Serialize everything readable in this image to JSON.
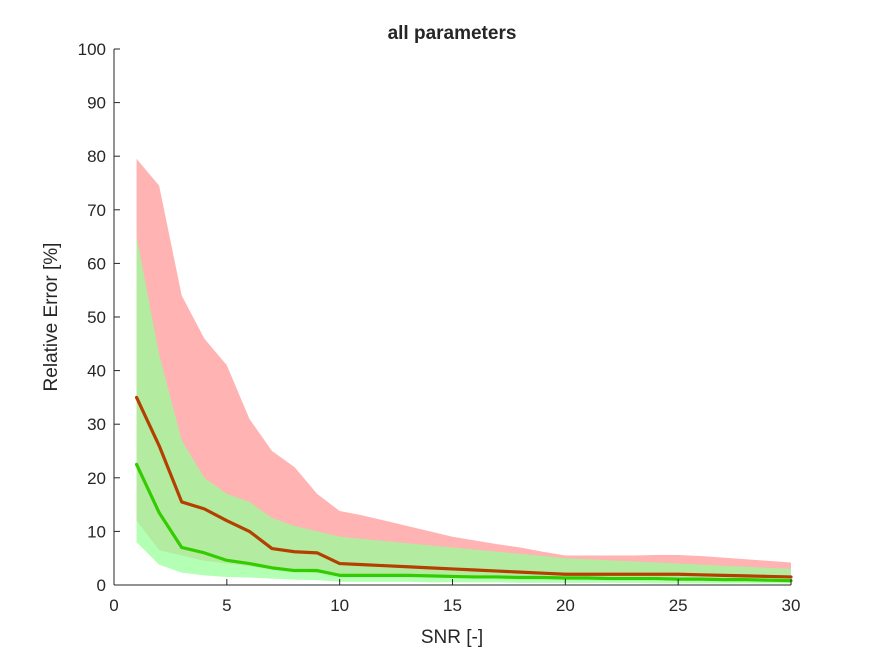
{
  "chart_data": {
    "type": "area",
    "title": "all parameters",
    "xlabel": "SNR [-]",
    "ylabel": "Relative Error [%]",
    "xlim": [
      0,
      30
    ],
    "ylim": [
      0,
      100
    ],
    "xticks": [
      0,
      5,
      10,
      15,
      20,
      25,
      30
    ],
    "xtick_labels": [
      "0",
      "5",
      "10",
      "15",
      "20",
      "25",
      "30"
    ],
    "yticks": [
      0,
      10,
      20,
      30,
      40,
      50,
      60,
      70,
      80,
      90,
      100
    ],
    "ytick_labels": [
      "0",
      "10",
      "20",
      "30",
      "40",
      "50",
      "60",
      "70",
      "80",
      "90",
      "100"
    ],
    "grid": false,
    "legend": "none",
    "x": [
      1,
      2,
      3,
      4,
      5,
      6,
      7,
      8,
      9,
      10,
      11,
      12,
      13,
      14,
      15,
      16,
      17,
      18,
      19,
      20,
      21,
      22,
      23,
      24,
      25,
      26,
      27,
      28,
      29,
      30
    ],
    "series": [
      {
        "color": "#b34000",
        "band_color": "#ff9999",
        "median": [
          35,
          26,
          15.5,
          14.2,
          12,
          10,
          6.8,
          6.2,
          6,
          4,
          3.8,
          3.6,
          3.4,
          3.2,
          3,
          2.8,
          2.6,
          2.4,
          2.2,
          2,
          2,
          2,
          2,
          2,
          2,
          1.9,
          1.8,
          1.7,
          1.6,
          1.5
        ],
        "upper": [
          79.5,
          74.5,
          54,
          46,
          41,
          31,
          25,
          22,
          17,
          13.8,
          13,
          12,
          11,
          10,
          9,
          8.3,
          7.6,
          7,
          6.2,
          5.5,
          5.5,
          5.5,
          5.5,
          5.6,
          5.6,
          5.4,
          5.1,
          4.8,
          4.5,
          4.2
        ],
        "lower": [
          12,
          6.5,
          5.5,
          4.5,
          4,
          3.5,
          3,
          2.6,
          2.2,
          2,
          2,
          2,
          1.9,
          1.8,
          1.7,
          1.6,
          1.5,
          1.5,
          1.4,
          1.4,
          1.3,
          1.3,
          1.3,
          1.3,
          1.2,
          1.2,
          1.2,
          1.1,
          1.1,
          1
        ]
      },
      {
        "color": "#33cc00",
        "band_color": "#99ff99",
        "median": [
          22.5,
          13.5,
          7,
          6,
          4.6,
          4,
          3.2,
          2.7,
          2.7,
          1.8,
          1.8,
          1.8,
          1.8,
          1.7,
          1.6,
          1.5,
          1.5,
          1.4,
          1.4,
          1.3,
          1.3,
          1.2,
          1.2,
          1.2,
          1.1,
          1.1,
          1,
          1,
          0.9,
          0.8
        ],
        "upper": [
          65,
          43,
          27,
          20,
          17,
          15.5,
          12.5,
          11,
          10,
          9,
          8.6,
          8.2,
          7.8,
          7.4,
          7,
          6.6,
          6.2,
          5.8,
          5.4,
          5,
          4.8,
          4.6,
          4.4,
          4.2,
          4,
          3.8,
          3.6,
          3.4,
          3.2,
          3
        ],
        "lower": [
          8,
          3.8,
          2.3,
          1.8,
          1.5,
          1.4,
          1.2,
          1,
          0.9,
          0.6,
          0.6,
          0.6,
          0.6,
          0.5,
          0.5,
          0.5,
          0.5,
          0.4,
          0.4,
          0.4,
          0.4,
          0.4,
          0.4,
          0.3,
          0.3,
          0.3,
          0.3,
          0.3,
          0.3,
          0.3
        ]
      }
    ]
  }
}
